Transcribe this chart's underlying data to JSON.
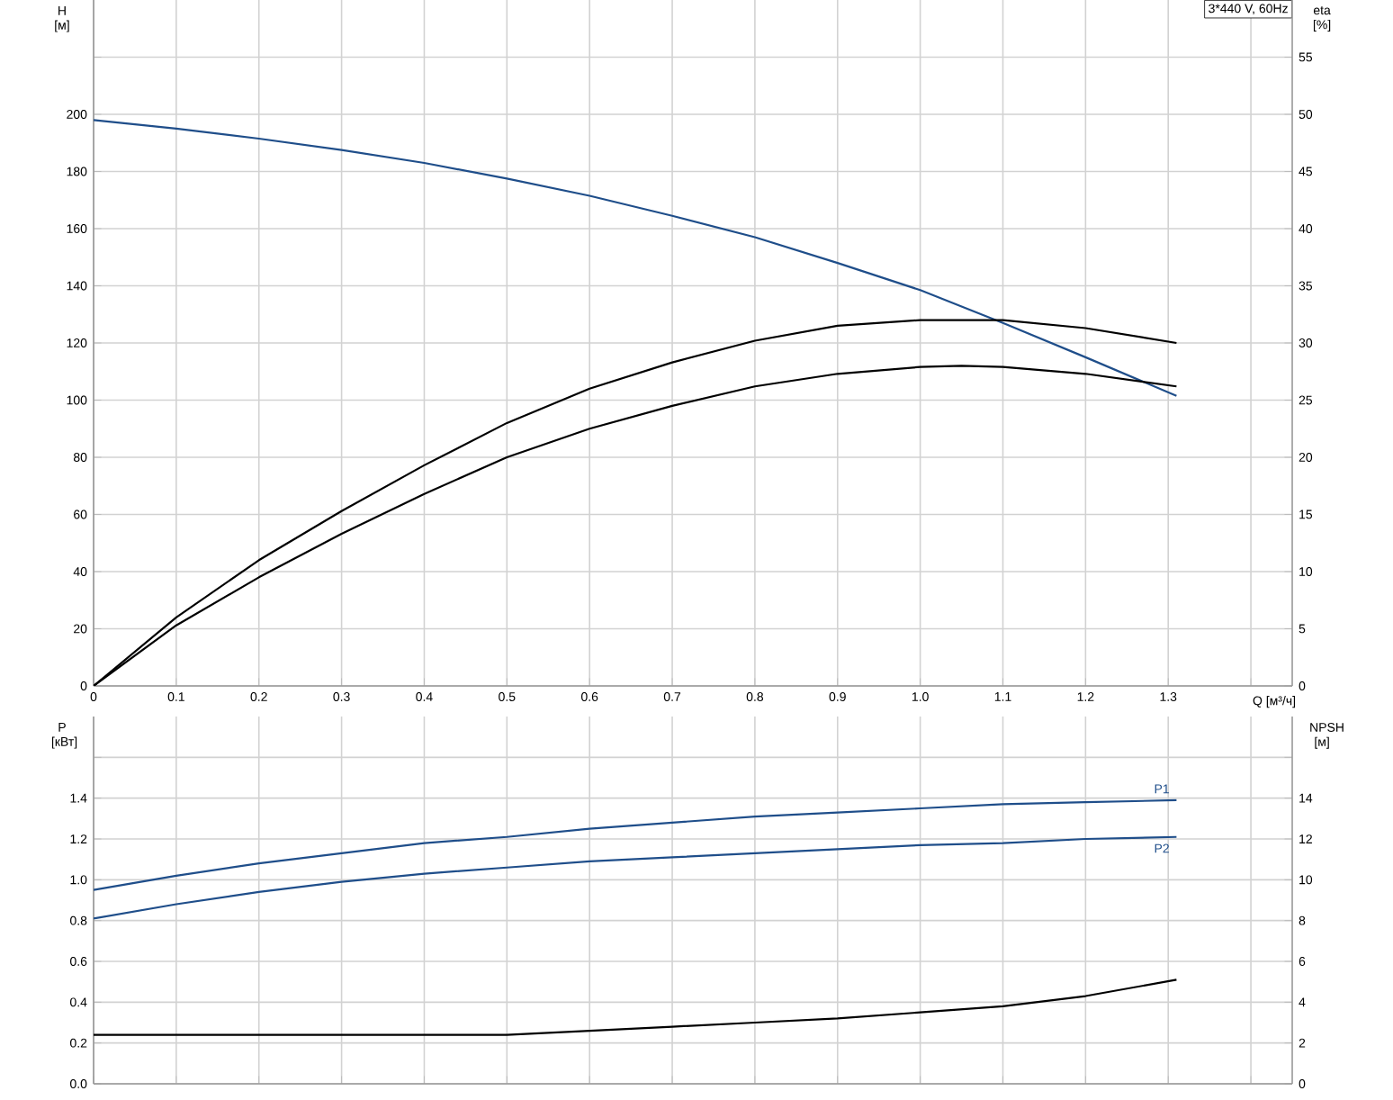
{
  "chart_data": [
    {
      "type": "line",
      "title": "3*440 V, 60Hz",
      "xlabel": "Q [м³/ч]",
      "ylabel": "H [м]",
      "y2label": "eta [%]",
      "grid": true,
      "xlim": [
        0,
        1.45
      ],
      "xticks": [
        0,
        0.1,
        0.2,
        0.3,
        0.4,
        0.5,
        0.6,
        0.7,
        0.8,
        0.9,
        {
          "value": 1,
          "label": "1.0"
        },
        1.1,
        1.2,
        1.3,
        {
          "value": 1.4,
          "label": null
        }
      ],
      "ylim": [
        0,
        240
      ],
      "yticks": [
        0,
        20,
        40,
        60,
        80,
        100,
        120,
        140,
        160,
        180,
        200,
        {
          "value": 220,
          "label": null
        }
      ],
      "y2lim": [
        0,
        60
      ],
      "y2ticks": [
        0,
        5,
        10,
        15,
        20,
        25,
        30,
        35,
        40,
        45,
        50,
        55
      ],
      "series": [
        {
          "color": "#1f4e8a",
          "x": [
            0,
            0.1,
            0.2,
            0.3,
            0.4,
            0.5,
            0.6,
            0.7,
            0.8,
            0.9,
            1.0,
            1.1,
            1.2,
            1.31
          ],
          "values": [
            198,
            195,
            191.5,
            187.5,
            183,
            177.5,
            171.5,
            164.5,
            157,
            148,
            138.5,
            127,
            115,
            101.5
          ]
        },
        {
          "color": "#000000",
          "axis": "y2",
          "x": [
            0,
            0.1,
            0.2,
            0.3,
            0.4,
            0.5,
            0.6,
            0.7,
            0.8,
            0.9,
            1.0,
            1.1,
            1.2,
            1.31
          ],
          "values": [
            0,
            6,
            11,
            15.3,
            19.3,
            23,
            26,
            28.3,
            30.2,
            31.5,
            32,
            32,
            31.3,
            30
          ]
        },
        {
          "color": "#000000",
          "axis": "y2",
          "x": [
            0,
            0.1,
            0.2,
            0.3,
            0.4,
            0.5,
            0.6,
            0.7,
            0.8,
            0.9,
            1.0,
            1.05,
            1.1,
            1.2,
            1.31
          ],
          "values": [
            0,
            5.3,
            9.5,
            13.3,
            16.8,
            20,
            22.5,
            24.5,
            26.2,
            27.3,
            27.9,
            28,
            27.9,
            27.3,
            26.2
          ]
        }
      ]
    },
    {
      "type": "line",
      "ylabel": "P [кВт]",
      "y2label": "NPSH [м]",
      "grid": true,
      "tick_labels": "y",
      "xlim": [
        0,
        1.45
      ],
      "xticks": [
        0,
        0.1,
        0.2,
        0.3,
        0.4,
        0.5,
        0.6,
        0.7,
        0.8,
        0.9,
        1,
        1.1,
        1.2,
        1.3,
        1.4
      ],
      "ylim": [
        0,
        1.8
      ],
      "yticks": [
        {
          "value": 0,
          "label": "0.0"
        },
        0.2,
        0.4,
        0.6,
        0.8,
        {
          "value": 1,
          "label": "1.0"
        },
        1.2,
        1.4,
        {
          "value": 1.6,
          "label": null
        }
      ],
      "y2lim": [
        0,
        18
      ],
      "y2ticks": [
        0,
        2,
        4,
        6,
        8,
        10,
        12,
        14,
        {
          "value": 16,
          "label": null
        }
      ],
      "series": [
        {
          "name": "P1",
          "color": "#1f4e8a",
          "x": [
            0,
            0.1,
            0.2,
            0.3,
            0.4,
            0.5,
            0.6,
            0.7,
            0.8,
            0.9,
            1.0,
            1.1,
            1.2,
            1.31
          ],
          "values": [
            0.95,
            1.02,
            1.08,
            1.13,
            1.18,
            1.21,
            1.25,
            1.28,
            1.31,
            1.33,
            1.35,
            1.37,
            1.38,
            1.39
          ]
        },
        {
          "name": "P2",
          "color": "#1f4e8a",
          "x": [
            0,
            0.1,
            0.2,
            0.3,
            0.4,
            0.5,
            0.6,
            0.7,
            0.8,
            0.9,
            1.0,
            1.1,
            1.2,
            1.31
          ],
          "values": [
            0.81,
            0.88,
            0.94,
            0.99,
            1.03,
            1.06,
            1.09,
            1.11,
            1.13,
            1.15,
            1.17,
            1.18,
            1.2,
            1.21
          ]
        },
        {
          "color": "#000000",
          "axis": "y2",
          "x": [
            0,
            0.4,
            0.5,
            0.6,
            0.7,
            0.8,
            0.9,
            1.0,
            1.1,
            1.2,
            1.31
          ],
          "values": [
            2.4,
            2.4,
            2.4,
            2.6,
            2.8,
            3.0,
            3.2,
            3.5,
            3.8,
            4.3,
            5.1
          ]
        }
      ]
    }
  ]
}
